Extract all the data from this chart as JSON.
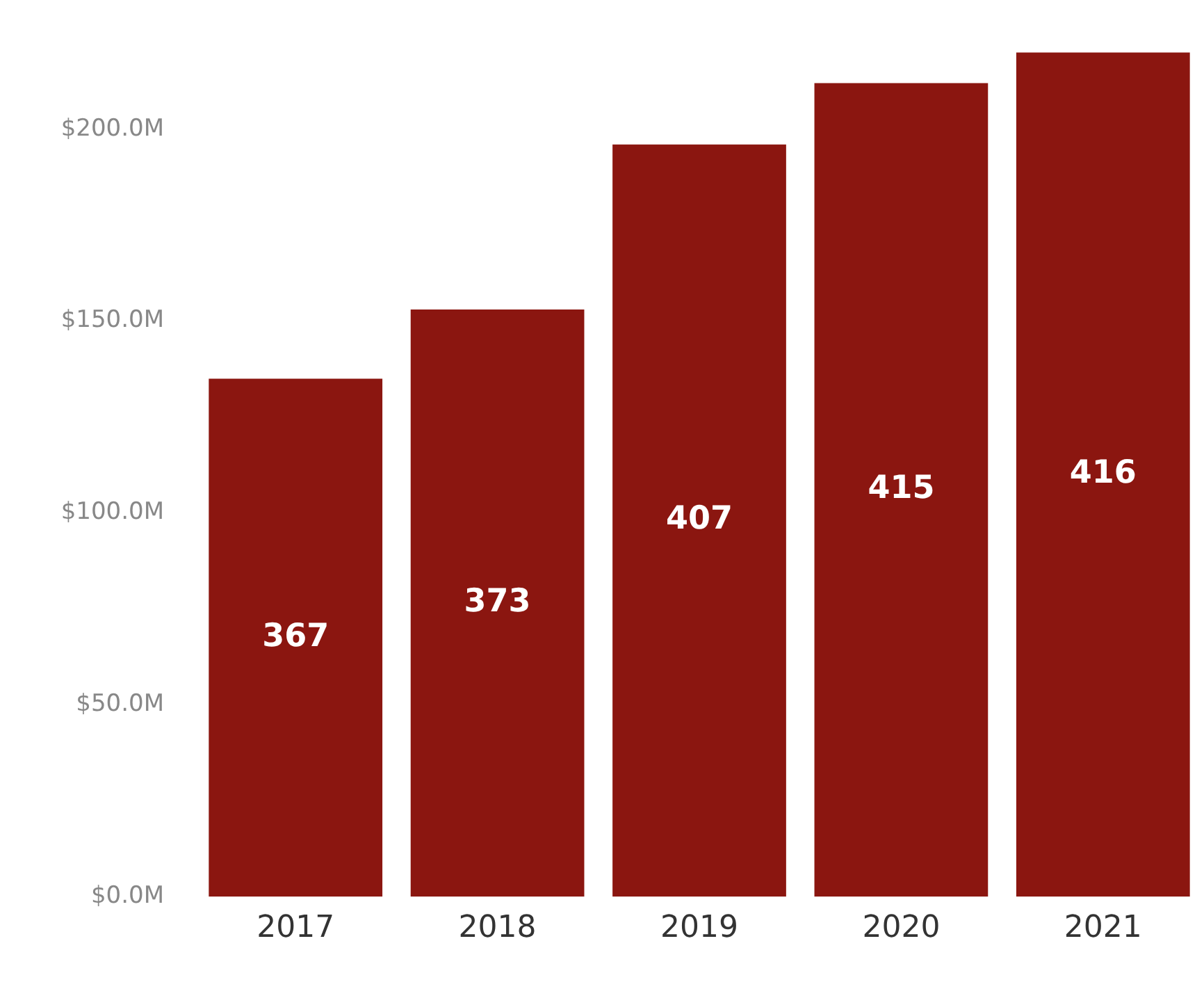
{
  "chart_data": {
    "type": "bar",
    "categories": [
      "2017",
      "2018",
      "2019",
      "2020",
      "2021"
    ],
    "values": [
      135,
      153,
      196,
      212,
      220
    ],
    "color": "#8b1610",
    "ylim": [
      0,
      222
    ],
    "yticks": [
      {
        "value": 0,
        "label": "$0.0M"
      },
      {
        "value": 50,
        "label": "$50.0M"
      },
      {
        "value": 100,
        "label": "$100.0M"
      },
      {
        "value": 150,
        "label": "$150.0M"
      },
      {
        "value": 200,
        "label": "$200.0M"
      }
    ],
    "grid": false,
    "legend": false,
    "annotations": [
      "367",
      "373",
      "407",
      "415",
      "416"
    ]
  }
}
